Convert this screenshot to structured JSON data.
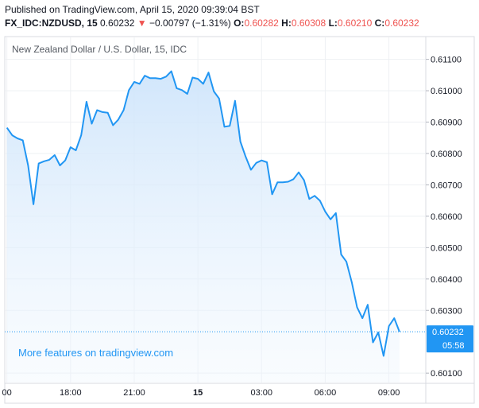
{
  "header": {
    "published": "Published on TradingView.com, April 15, 2020 09:39:04 BST",
    "symbol": "FX_IDC:NZDUSD, 15",
    "last": "0.60232",
    "change_arrow": "▼",
    "change": "−0.00797 (−1.31%)",
    "o_label": "O:",
    "o_value": "0.60282",
    "h_label": "H:",
    "h_value": "0.60308",
    "l_label": "L:",
    "l_value": "0.60210",
    "c_label": "C:",
    "c_value": "0.60232"
  },
  "chart_title": "New Zealand Dollar / U.S. Dollar, 15, IDC",
  "watermark": "More features on tradingview.com",
  "price_tag": {
    "value": "0.60232",
    "countdown": "05:58"
  },
  "colors": {
    "line": "#2196f3",
    "fill": "#d6eafc",
    "negative": "#ef5350",
    "tag": "#2196f3"
  },
  "chart_data": {
    "type": "area",
    "title": "New Zealand Dollar / U.S. Dollar, 15, IDC",
    "ylim": [
      0.6007,
      0.6117
    ],
    "y_ticks": [
      "0.61100",
      "0.61000",
      "0.60900",
      "0.60800",
      "0.60700",
      "0.60600",
      "0.60500",
      "0.60400",
      "0.60300",
      "0.60100"
    ],
    "x_ticks": [
      "00",
      "18:00",
      "21:00",
      "15",
      "03:00",
      "06:00",
      "09:00"
    ],
    "x_tick_hours": [
      15,
      18,
      21,
      24,
      27,
      30,
      33
    ],
    "grid": true,
    "current_price": 0.60232,
    "points_hours": [
      15.0,
      15.25,
      15.5,
      15.75,
      16.0,
      16.25,
      16.5,
      16.75,
      17.0,
      17.25,
      17.5,
      17.75,
      18.0,
      18.25,
      18.5,
      18.75,
      19.0,
      19.25,
      19.5,
      19.75,
      20.0,
      20.25,
      20.5,
      20.75,
      21.0,
      21.25,
      21.5,
      21.75,
      22.0,
      22.25,
      22.5,
      22.75,
      23.0,
      23.25,
      23.5,
      23.75,
      24.0,
      24.25,
      24.5,
      24.75,
      25.0,
      25.25,
      25.5,
      25.75,
      26.0,
      26.25,
      26.5,
      26.75,
      27.0,
      27.25,
      27.5,
      27.75,
      28.0,
      28.25,
      28.5,
      28.75,
      29.0,
      29.25,
      29.5,
      29.75,
      30.0,
      30.25,
      30.5,
      30.75,
      31.0,
      31.25,
      31.5,
      31.75,
      32.0,
      32.25,
      32.5,
      32.75,
      33.0,
      33.25,
      33.5
    ],
    "values": [
      0.60882,
      0.60858,
      0.60848,
      0.60842,
      0.60762,
      0.60638,
      0.60768,
      0.60775,
      0.6078,
      0.60795,
      0.60762,
      0.60778,
      0.6082,
      0.6081,
      0.60858,
      0.60965,
      0.60895,
      0.60938,
      0.60932,
      0.6093,
      0.6089,
      0.60908,
      0.60938,
      0.61002,
      0.61028,
      0.61022,
      0.61048,
      0.6104,
      0.6104,
      0.61038,
      0.61045,
      0.61062,
      0.61008,
      0.61002,
      0.6099,
      0.61042,
      0.61038,
      0.61022,
      0.61058,
      0.60998,
      0.60975,
      0.60885,
      0.60888,
      0.60968,
      0.60838,
      0.6079,
      0.60748,
      0.6077,
      0.60778,
      0.60772,
      0.6067,
      0.60708,
      0.60708,
      0.6071,
      0.60718,
      0.6074,
      0.60715,
      0.60655,
      0.60665,
      0.6065,
      0.60615,
      0.6059,
      0.6061,
      0.60478,
      0.60455,
      0.6039,
      0.6031,
      0.60275,
      0.60318,
      0.60198,
      0.6023,
      0.60155,
      0.6025,
      0.60275,
      0.60232
    ]
  }
}
